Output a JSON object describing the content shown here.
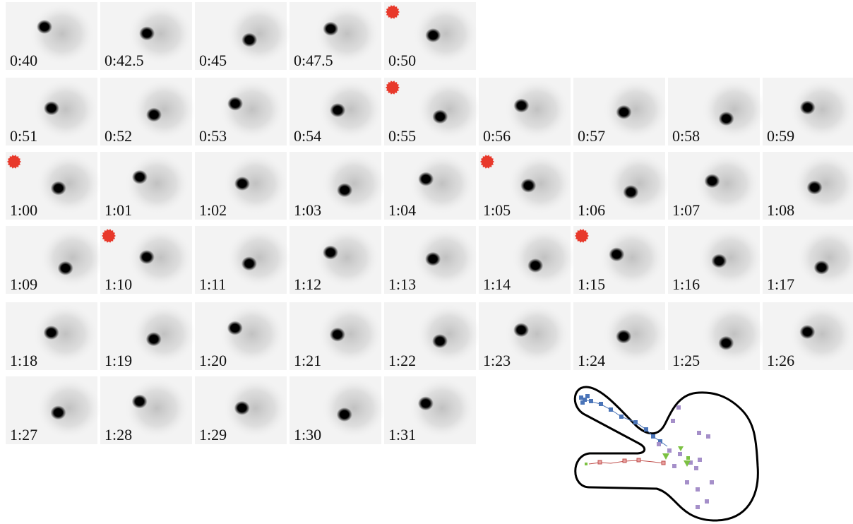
{
  "rows": [
    {
      "frames": [
        {
          "label": "0:40",
          "marker": false
        },
        {
          "label": "0:42.5",
          "marker": false
        },
        {
          "label": "0:45",
          "marker": false
        },
        {
          "label": "0:47.5",
          "marker": false
        },
        {
          "label": "0:50",
          "marker": true
        }
      ]
    },
    {
      "frames": [
        {
          "label": "0:51",
          "marker": false
        },
        {
          "label": "0:52",
          "marker": false
        },
        {
          "label": "0:53",
          "marker": false
        },
        {
          "label": "0:54",
          "marker": false
        },
        {
          "label": "0:55",
          "marker": true
        },
        {
          "label": "0:56",
          "marker": false
        },
        {
          "label": "0:57",
          "marker": false
        },
        {
          "label": "0:58",
          "marker": false
        },
        {
          "label": "0:59",
          "marker": false
        }
      ]
    },
    {
      "frames": [
        {
          "label": "1:00",
          "marker": true
        },
        {
          "label": "1:01",
          "marker": false
        },
        {
          "label": "1:02",
          "marker": false
        },
        {
          "label": "1:03",
          "marker": false
        },
        {
          "label": "1:04",
          "marker": false
        },
        {
          "label": "1:05",
          "marker": true
        },
        {
          "label": "1:06",
          "marker": false
        },
        {
          "label": "1:07",
          "marker": false
        },
        {
          "label": "1:08",
          "marker": false
        }
      ]
    },
    {
      "frames": [
        {
          "label": "1:09",
          "marker": false
        },
        {
          "label": "1:10",
          "marker": true
        },
        {
          "label": "1:11",
          "marker": false
        },
        {
          "label": "1:12",
          "marker": false
        },
        {
          "label": "1:13",
          "marker": false
        },
        {
          "label": "1:14",
          "marker": false
        },
        {
          "label": "1:15",
          "marker": true
        },
        {
          "label": "1:16",
          "marker": false
        },
        {
          "label": "1:17",
          "marker": false
        }
      ]
    },
    {
      "frames": [
        {
          "label": "1:18",
          "marker": false
        },
        {
          "label": "1:19",
          "marker": false
        },
        {
          "label": "1:20",
          "marker": false
        },
        {
          "label": "1:21",
          "marker": false
        },
        {
          "label": "1:22",
          "marker": false
        },
        {
          "label": "1:23",
          "marker": false
        },
        {
          "label": "1:24",
          "marker": false
        },
        {
          "label": "1:25",
          "marker": false
        },
        {
          "label": "1:26",
          "marker": false
        }
      ]
    },
    {
      "frames": [
        {
          "label": "1:27",
          "marker": false
        },
        {
          "label": "1:28",
          "marker": false
        },
        {
          "label": "1:29",
          "marker": false
        },
        {
          "label": "1:30",
          "marker": false
        },
        {
          "label": "1:31",
          "marker": false
        }
      ]
    }
  ]
}
